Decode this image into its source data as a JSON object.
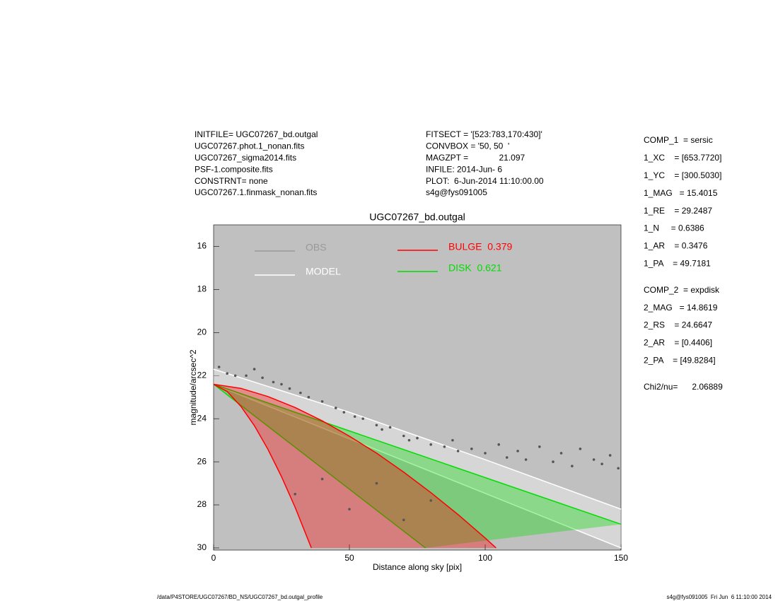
{
  "header": {
    "left": [
      "INITFILE= UGC07267_bd.outgal",
      "UGC07267.phot.1_nonan.fits",
      "UGC07267_sigma2014.fits",
      "PSF-1.composite.fits",
      "CONSTRNT= none",
      "UGC07267.1.finmask_nonan.fits"
    ],
    "middle": [
      "FITSECT = '[523:783,170:430]'",
      "CONVBOX = '50, 50  '",
      "MAGZPT =             21.097",
      "INFILE: 2014-Jun- 6",
      "PLOT:  6-Jun-2014 11:10:00.00",
      "s4g@fys091005"
    ],
    "params": [
      "COMP_1  = sersic",
      "1_XC    = [653.7720]",
      "1_YC    = [300.5030]",
      "1_MAG   = 15.4015",
      "1_RE    = 29.2487",
      "1_N     = 0.6386",
      "1_AR    = 0.3476",
      "1_PA    = 49.7181",
      "COMP_2  = expdisk",
      "2_MAG   = 14.8619",
      "2_RS    = 24.6647",
      "2_AR    = [0.4406]",
      "2_PA    = [49.8284]",
      "Chi2/nu=      2.06889"
    ]
  },
  "footer": {
    "left": "/data/P4STORE/UGC07267/BD_NS/UGC07267_bd.outgal_profile",
    "right": "s4g@fys091005  Fri Jun  6 11:10:00 2014"
  },
  "chart_data": {
    "type": "scatter",
    "title": "UGC07267_bd.outgal",
    "x_label": "Distance along sky [pix]",
    "y_label": "magnitude/arcsec^2",
    "xlim": [
      0,
      150
    ],
    "ylim": [
      15,
      30.1
    ],
    "y_inverted": true,
    "xticks": [
      0,
      50,
      100,
      150
    ],
    "yticks": [
      16,
      18,
      20,
      22,
      24,
      26,
      28,
      30
    ],
    "background": "#c0c0c0",
    "series": [
      {
        "name": "OBS",
        "color": "#555555",
        "x": [
          2,
          5,
          8,
          12,
          15,
          18,
          22,
          25,
          28,
          32,
          35,
          40,
          45,
          48,
          52,
          55,
          60,
          62,
          65,
          70,
          72,
          75,
          80,
          85,
          88,
          90,
          95,
          100,
          105,
          108,
          112,
          115,
          120,
          125,
          128,
          132,
          135,
          140,
          143,
          146,
          149,
          30,
          40,
          50,
          60,
          70,
          80
        ],
        "values": [
          21.6,
          21.9,
          22.0,
          22.0,
          21.7,
          22.1,
          22.3,
          22.4,
          22.6,
          22.8,
          23.0,
          23.2,
          23.5,
          23.7,
          23.9,
          24.0,
          24.3,
          24.5,
          24.4,
          24.8,
          25.0,
          24.9,
          25.2,
          25.3,
          25.0,
          25.5,
          25.4,
          25.6,
          25.2,
          25.8,
          25.5,
          25.9,
          25.3,
          26.0,
          25.6,
          26.2,
          25.4,
          25.9,
          26.1,
          25.7,
          26.3,
          27.5,
          26.8,
          28.2,
          27.0,
          28.7,
          27.8
        ]
      }
    ],
    "bands": [
      {
        "name": "MODEL",
        "color": "#ffffff",
        "upper": {
          "x": [
            0,
            50,
            100,
            150
          ],
          "values": [
            21.7,
            23.7,
            25.9,
            28.2
          ]
        },
        "lower": {
          "x": [
            0,
            150
          ],
          "values": [
            22.4,
            30
          ]
        }
      },
      {
        "name": "DISK  0.621",
        "color": "#00dd00",
        "upper": {
          "x": [
            0,
            150
          ],
          "values": [
            22.4,
            28.9
          ]
        },
        "lower": {
          "x": [
            0,
            78
          ],
          "values": [
            22.4,
            30
          ]
        }
      },
      {
        "name": "BULGE  0.379",
        "color": "#ff0000",
        "upper": {
          "x": [
            0,
            10,
            20,
            30,
            40,
            50,
            60,
            70,
            80,
            90,
            100,
            104
          ],
          "values": [
            22.4,
            22.59,
            22.97,
            23.48,
            24.1,
            24.81,
            25.6,
            26.48,
            27.43,
            28.45,
            29.54,
            30
          ]
        },
        "lower": {
          "x": [
            0,
            5,
            10,
            15,
            20,
            25,
            30,
            36
          ],
          "values": [
            22.4,
            22.74,
            23.42,
            24.32,
            25.42,
            26.69,
            28.11,
            30
          ]
        }
      }
    ]
  }
}
